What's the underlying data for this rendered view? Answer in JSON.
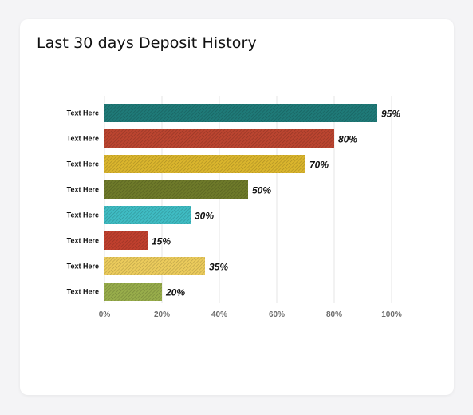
{
  "card": {
    "title": "Last 30 days Deposit History"
  },
  "chart_data": {
    "type": "bar",
    "orientation": "horizontal",
    "title": "Last 30 days Deposit History",
    "categories": [
      "Text Here",
      "Text Here",
      "Text Here",
      "Text Here",
      "Text Here",
      "Text Here",
      "Text Here",
      "Text Here"
    ],
    "values": [
      95,
      80,
      70,
      50,
      30,
      15,
      35,
      20
    ],
    "value_labels": [
      "95%",
      "80%",
      "70%",
      "50%",
      "30%",
      "15%",
      "35%",
      "20%"
    ],
    "colors": [
      "#1f7a78",
      "#bb4530",
      "#dab52d",
      "#6e7a2a",
      "#3fbcc3",
      "#c0402e",
      "#ebcb5c",
      "#98ad4b"
    ],
    "xlim": [
      0,
      100
    ],
    "x_ticks": [
      "0%",
      "20%",
      "40%",
      "60%",
      "80%",
      "100%"
    ],
    "grid": true,
    "legend": "none"
  }
}
